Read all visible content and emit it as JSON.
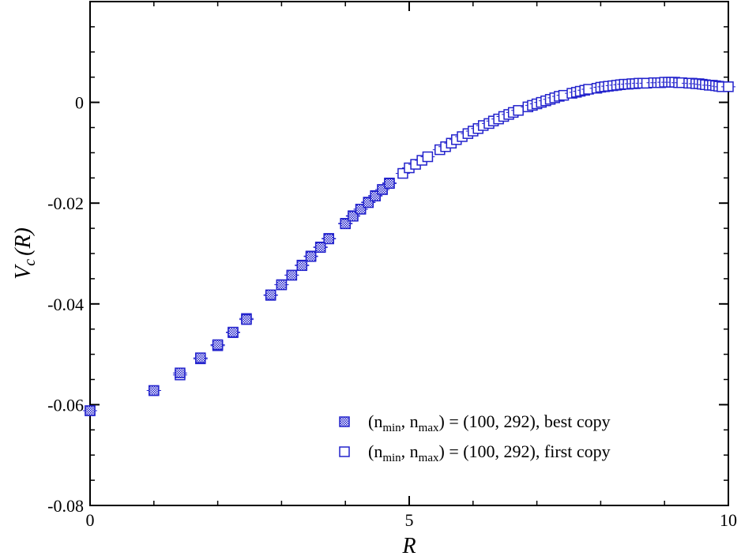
{
  "chart_data": {
    "type": "scatter",
    "title": "",
    "xlabel": "R",
    "ylabel_main": "V",
    "ylabel_sub": "c",
    "ylabel_rest": "(R)",
    "xlim": [
      0,
      10
    ],
    "ylim": [
      -0.08,
      0.02
    ],
    "x_ticks": [
      0,
      5,
      10
    ],
    "x_tick_labels": [
      "0",
      "5",
      "10"
    ],
    "y_ticks": [
      -0.08,
      -0.06,
      -0.04,
      -0.02,
      0
    ],
    "y_tick_labels": [
      "-0.08",
      "-0.06",
      "-0.04",
      "-0.02",
      "0"
    ],
    "grid": false,
    "legend_position": "bottom-right",
    "series": [
      {
        "name": "best copy",
        "legend_prefix": "(n",
        "legend_sub1": "min",
        "legend_mid": ", n",
        "legend_sub2": "max",
        "legend_suffix": ") = (100, 292), best copy",
        "marker": "filled-square",
        "color": "#2222cc",
        "x": [
          0,
          1,
          1.41,
          1.73,
          2,
          2.24,
          2.45,
          2.83,
          3,
          3.16,
          3.32,
          3.46,
          3.61,
          3.74,
          4,
          4.12,
          4.24,
          4.36,
          4.47,
          4.58,
          4.69
        ],
        "y": [
          -0.0612,
          -0.0572,
          -0.0537,
          -0.0507,
          -0.0481,
          -0.0456,
          -0.0431,
          -0.0382,
          -0.0362,
          -0.0343,
          -0.0324,
          -0.0306,
          -0.0288,
          -0.0271,
          -0.0241,
          -0.0226,
          -0.0212,
          -0.0199,
          -0.0186,
          -0.0173,
          -0.0161
        ]
      },
      {
        "name": "first copy",
        "legend_prefix": "(n",
        "legend_sub1": "min",
        "legend_mid": ", n",
        "legend_sub2": "max",
        "legend_suffix": ") = (100, 292), first copy",
        "marker": "open-square",
        "color": "#2222cc",
        "x": [
          0,
          1,
          1.41,
          1.73,
          2,
          2.24,
          2.45,
          2.83,
          3,
          3.16,
          3.32,
          3.46,
          3.61,
          3.74,
          4,
          4.12,
          4.24,
          4.36,
          4.47,
          4.58,
          4.69,
          4.9,
          5,
          5.1,
          5.2,
          5.29,
          5.48,
          5.57,
          5.66,
          5.74,
          5.83,
          5.92,
          6,
          6.08,
          6.16,
          6.25,
          6.32,
          6.4,
          6.48,
          6.56,
          6.63,
          6.71,
          6.86,
          6.93,
          7,
          7.07,
          7.14,
          7.21,
          7.28,
          7.35,
          7.42,
          7.55,
          7.62,
          7.68,
          7.75,
          7.81,
          7.94,
          8,
          8.06,
          8.12,
          8.19,
          8.25,
          8.31,
          8.37,
          8.43,
          8.49,
          8.54,
          8.6,
          8.66,
          8.72,
          8.83,
          8.89,
          8.94,
          9,
          9.06,
          9.11,
          9.16,
          9.22,
          9.27,
          9.38,
          9.43,
          9.49,
          9.54,
          9.59,
          9.64,
          9.7,
          9.75,
          9.8,
          9.85,
          9.9,
          10
        ],
        "y": [
          -0.0612,
          -0.0572,
          -0.0541,
          -0.0509,
          -0.0483,
          -0.0457,
          -0.0429,
          -0.0383,
          -0.0362,
          -0.0343,
          -0.0323,
          -0.0305,
          -0.0287,
          -0.027,
          -0.024,
          -0.0225,
          -0.0212,
          -0.0198,
          -0.0185,
          -0.0173,
          -0.016,
          -0.0141,
          -0.013,
          -0.0123,
          -0.0115,
          -0.0108,
          -0.0094,
          -0.0088,
          -0.0081,
          -0.0074,
          -0.0068,
          -0.0062,
          -0.0057,
          -0.0052,
          -0.0046,
          -0.0042,
          -0.0037,
          -0.0033,
          -0.0028,
          -0.0024,
          -0.002,
          -0.0016,
          -0.0009,
          -0.0006,
          -0.0003,
          0.0,
          0.0003,
          0.0006,
          0.0009,
          0.0012,
          0.0014,
          0.0018,
          0.002,
          0.0022,
          0.0024,
          0.0026,
          0.0028,
          0.003,
          0.0031,
          0.0032,
          0.0033,
          0.0034,
          0.0035,
          0.0036,
          0.0036,
          0.0037,
          0.0037,
          0.0038,
          0.0038,
          0.0038,
          0.0039,
          0.0039,
          0.0039,
          0.004,
          0.004,
          0.004,
          0.004,
          0.0039,
          0.0039,
          0.0038,
          0.0038,
          0.0037,
          0.0037,
          0.0036,
          0.0035,
          0.0034,
          0.0034,
          0.0033,
          0.0032,
          0.0031,
          0.0031
        ]
      }
    ]
  }
}
